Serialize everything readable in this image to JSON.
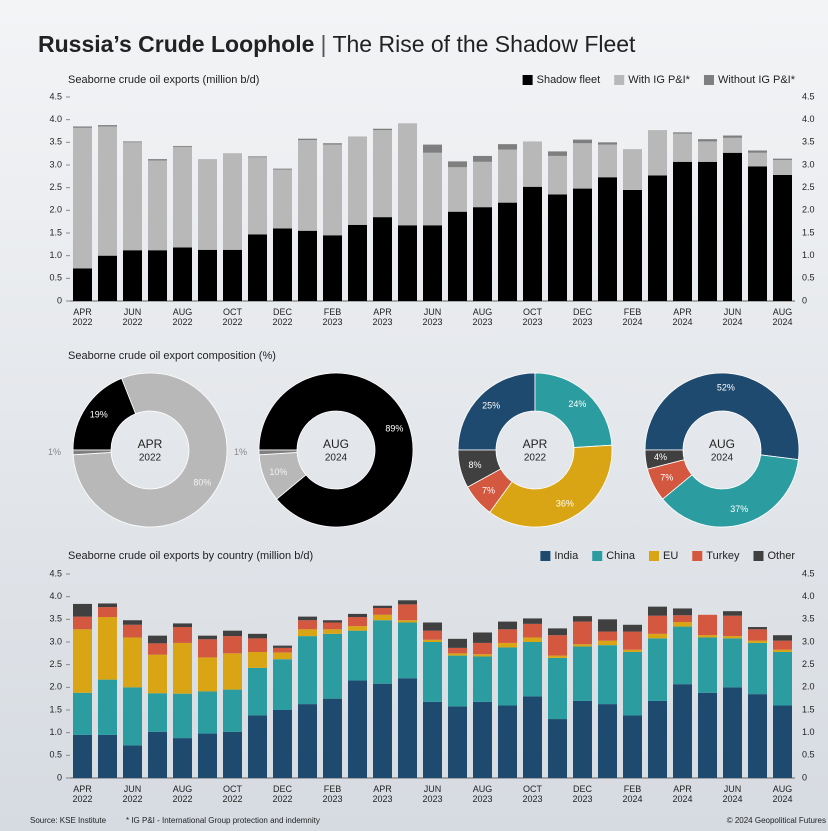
{
  "header": {
    "title_bold": "Russia’s Crude Loophole",
    "separator": "|",
    "title_rest": "The Rise of the Shadow Fleet"
  },
  "composition_title": "Seaborne crude oil export composition (%)",
  "footer": {
    "source": "Source: KSE Institute",
    "note": "* IG P&I - International Group protection and indemnity",
    "credit": "© 2024 Geopolitical Futures"
  },
  "chart_data": [
    {
      "type": "bar",
      "stacked": true,
      "title": "Seaborne crude oil exports (million b/d)",
      "categories": [
        [
          "APR",
          "2022"
        ],
        null,
        [
          "JUN",
          "2022"
        ],
        null,
        [
          "AUG",
          "2022"
        ],
        null,
        [
          "OCT",
          "2022"
        ],
        null,
        [
          "DEC",
          "2022"
        ],
        null,
        [
          "FEB",
          "2023"
        ],
        null,
        [
          "APR",
          "2023"
        ],
        null,
        [
          "JUN",
          "2023"
        ],
        null,
        [
          "AUG",
          "2023"
        ],
        null,
        [
          "OCT",
          "2023"
        ],
        null,
        [
          "DEC",
          "2023"
        ],
        null,
        [
          "FEB",
          "2024"
        ],
        null,
        [
          "APR",
          "2024"
        ],
        null,
        [
          "JUN",
          "2024"
        ],
        null,
        [
          "AUG",
          "2024"
        ]
      ],
      "series": [
        {
          "name": "Shadow fleet",
          "color": "#000000",
          "values": [
            0.72,
            1.0,
            1.12,
            1.12,
            1.18,
            1.13,
            1.13,
            1.47,
            1.6,
            1.55,
            1.45,
            1.68,
            1.85,
            1.67,
            1.67,
            1.97,
            2.07,
            2.17,
            2.52,
            2.35,
            2.48,
            2.73,
            2.45,
            2.77,
            3.07,
            3.07,
            3.27,
            2.97,
            2.78
          ]
        },
        {
          "name": "With IG P&I*",
          "color": "#b8b8b8",
          "values": [
            3.1,
            2.85,
            2.38,
            1.98,
            2.22,
            2.0,
            2.13,
            1.7,
            1.3,
            2.0,
            2.0,
            1.95,
            1.92,
            2.25,
            1.6,
            0.98,
            1.0,
            1.17,
            1.0,
            0.85,
            1.0,
            0.72,
            0.9,
            1.0,
            0.62,
            0.45,
            0.33,
            0.3,
            0.33
          ]
        },
        {
          "name": "Without IG P&I*",
          "color": "#7f7f7f",
          "values": [
            0.03,
            0.03,
            0.02,
            0.03,
            0.02,
            0,
            0,
            0.02,
            0.02,
            0.03,
            0.03,
            0,
            0.03,
            0,
            0.18,
            0.13,
            0.13,
            0.12,
            0,
            0.1,
            0.08,
            0.05,
            0,
            0,
            0.03,
            0.05,
            0.05,
            0.05,
            0.03
          ]
        }
      ],
      "ylim": [
        0,
        4.5
      ],
      "yticks": [
        0,
        0.5,
        {
          "value": 1,
          "label": "1.0"
        },
        1.5,
        {
          "value": 2,
          "label": "2.0"
        },
        2.5,
        {
          "value": 3,
          "label": "3.0"
        },
        3.5,
        {
          "value": 4,
          "label": "4.0"
        },
        4.5
      ]
    },
    {
      "type": "pie",
      "center_label": [
        "APR",
        "2022"
      ],
      "values": [
        19,
        80,
        1
      ],
      "value_labels": [
        "19%",
        "80%",
        "1%"
      ],
      "colors": [
        "#000000",
        "#b8b8b8",
        "#7f7f7f"
      ]
    },
    {
      "type": "pie",
      "center_label": [
        "AUG",
        "2024"
      ],
      "values": [
        89,
        10,
        1
      ],
      "value_labels": [
        "89%",
        "10%",
        "1%"
      ],
      "colors": [
        "#000000",
        "#b8b8b8",
        "#7f7f7f"
      ]
    },
    {
      "type": "pie",
      "center_label": [
        "APR",
        "2022"
      ],
      "values": [
        25,
        24,
        36,
        7,
        8
      ],
      "value_labels": [
        "25%",
        "24%",
        "36%",
        "7%",
        "8%"
      ],
      "colors": [
        "#1d4a6e",
        "#2b9ca0",
        "#d9a514",
        "#d4573f",
        "#404040"
      ]
    },
    {
      "type": "pie",
      "center_label": [
        "AUG",
        "2024"
      ],
      "values": [
        52,
        37,
        7,
        4
      ],
      "value_labels": [
        "52%",
        "37%",
        "7%",
        "4%"
      ],
      "colors": [
        "#1d4a6e",
        "#2b9ca0",
        "#d4573f",
        "#404040"
      ]
    },
    {
      "type": "bar",
      "stacked": true,
      "title": "Seaborne crude oil exports by country (million b/d)",
      "categories": [
        [
          "APR",
          "2022"
        ],
        null,
        [
          "JUN",
          "2022"
        ],
        null,
        [
          "AUG",
          "2022"
        ],
        null,
        [
          "OCT",
          "2022"
        ],
        null,
        [
          "DEC",
          "2022"
        ],
        null,
        [
          "FEB",
          "2023"
        ],
        null,
        [
          "APR",
          "2023"
        ],
        null,
        [
          "JUN",
          "2023"
        ],
        null,
        [
          "AUG",
          "2023"
        ],
        null,
        [
          "OCT",
          "2023"
        ],
        null,
        [
          "DEC",
          "2023"
        ],
        null,
        [
          "FEB",
          "2024"
        ],
        null,
        [
          "APR",
          "2024"
        ],
        null,
        [
          "JUN",
          "2024"
        ],
        null,
        [
          "AUG",
          "2024"
        ]
      ],
      "series": [
        {
          "name": "India",
          "color": "#1d4a6e",
          "values": [
            0.95,
            0.95,
            0.72,
            1.02,
            0.88,
            0.98,
            1.02,
            1.38,
            1.5,
            1.63,
            1.75,
            2.15,
            2.08,
            2.2,
            1.68,
            1.58,
            1.68,
            1.6,
            1.8,
            1.3,
            1.7,
            1.63,
            1.38,
            1.7,
            2.07,
            1.88,
            2.0,
            1.85,
            1.6
          ]
        },
        {
          "name": "China",
          "color": "#2b9ca0",
          "values": [
            0.93,
            1.22,
            1.28,
            0.85,
            0.98,
            0.93,
            0.93,
            1.05,
            1.12,
            1.5,
            1.43,
            1.1,
            1.4,
            1.23,
            1.32,
            1.12,
            1.0,
            1.28,
            1.2,
            1.35,
            1.2,
            1.3,
            1.4,
            1.38,
            1.27,
            1.22,
            1.08,
            1.13,
            1.18
          ]
        },
        {
          "name": "EU",
          "color": "#d9a514",
          "values": [
            1.4,
            1.38,
            1.1,
            0.85,
            1.12,
            0.75,
            0.8,
            0.35,
            0.15,
            0.15,
            0.1,
            0.1,
            0.12,
            0.05,
            0.05,
            0.05,
            0.05,
            0.1,
            0.1,
            0.05,
            0.05,
            0.1,
            0.05,
            0.1,
            0.1,
            0.05,
            0.05,
            0.05,
            0.05
          ]
        },
        {
          "name": "Turkey",
          "color": "#d4573f",
          "values": [
            0.28,
            0.22,
            0.28,
            0.25,
            0.35,
            0.4,
            0.38,
            0.3,
            0.1,
            0.2,
            0.15,
            0.2,
            0.15,
            0.35,
            0.2,
            0.12,
            0.25,
            0.3,
            0.3,
            0.45,
            0.5,
            0.2,
            0.4,
            0.4,
            0.15,
            0.45,
            0.45,
            0.25,
            0.2
          ]
        },
        {
          "name": "Other",
          "color": "#404040",
          "values": [
            0.28,
            0.08,
            0.1,
            0.17,
            0.08,
            0.08,
            0.12,
            0.1,
            0.05,
            0.08,
            0.05,
            0.07,
            0.05,
            0.09,
            0.18,
            0.2,
            0.23,
            0.17,
            0.12,
            0.15,
            0.12,
            0.27,
            0.15,
            0.2,
            0.15,
            0,
            0.1,
            0.05,
            0.12
          ]
        }
      ],
      "ylim": [
        0,
        4.5
      ],
      "yticks": [
        0,
        0.5,
        {
          "value": 1,
          "label": "1.0"
        },
        1.5,
        {
          "value": 2,
          "label": "2.0"
        },
        2.5,
        {
          "value": 3,
          "label": "3.0"
        },
        3.5,
        {
          "value": 4,
          "label": "4.0"
        },
        4.5
      ]
    }
  ]
}
